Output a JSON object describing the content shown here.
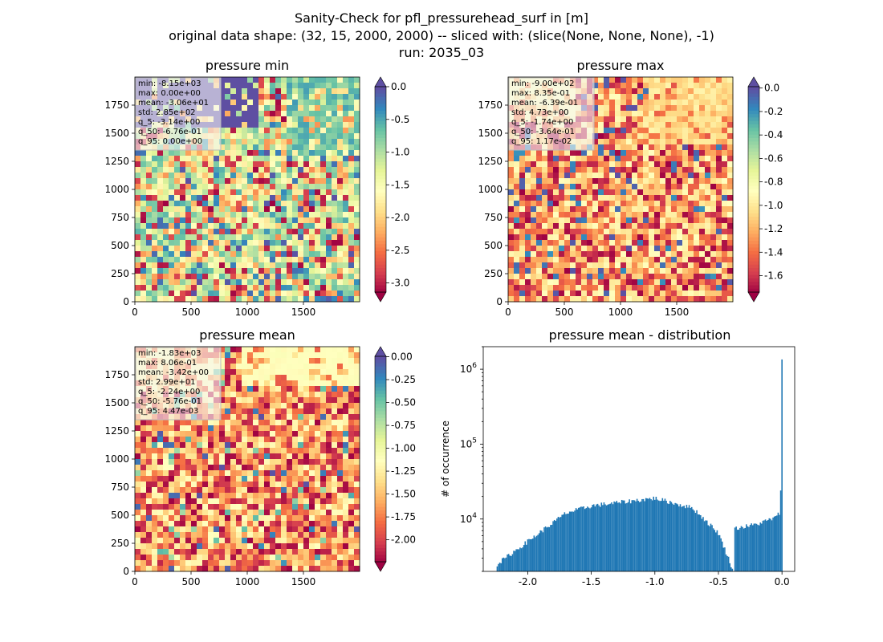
{
  "figure": {
    "title_lines": [
      "Sanity-Check for pfl_pressurehead_surf in [m]",
      "original data shape: (32, 15, 2000, 2000) -- sliced with: (slice(None, None, None), -1)",
      "run: 2035_03"
    ]
  },
  "chart_data": [
    {
      "type": "heatmap",
      "title": "pressure min",
      "x_ticks": [
        "0",
        "500",
        "1000",
        "1500"
      ],
      "y_ticks": [
        "0",
        "250",
        "500",
        "750",
        "1000",
        "1250",
        "1500",
        "1750"
      ],
      "xlim": [
        0,
        2000
      ],
      "ylim": [
        0,
        2000
      ],
      "colormap": "Spectral",
      "colorbar": {
        "ticks": [
          "0.0",
          "-0.5",
          "-1.0",
          "-1.5",
          "-2.0",
          "-2.5",
          "-3.0"
        ],
        "vmin": -3.14,
        "vmax": 0.0,
        "extend": "both"
      },
      "stats": [
        "min: -8.15e+03",
        "max: 0.00e+00",
        "mean: -3.06e+01",
        "std: 2.85e+02",
        "q_5: -3.14e+00",
        "q_50: -6.76e-01",
        "q_95: 0.00e+00"
      ]
    },
    {
      "type": "heatmap",
      "title": "pressure max",
      "x_ticks": [
        "0",
        "500",
        "1000",
        "1500"
      ],
      "y_ticks": [
        "0",
        "250",
        "500",
        "750",
        "1000",
        "1250",
        "1500",
        "1750"
      ],
      "xlim": [
        0,
        2000
      ],
      "ylim": [
        0,
        2000
      ],
      "colormap": "Spectral",
      "colorbar": {
        "ticks": [
          "0.0",
          "-0.2",
          "-0.4",
          "-0.6",
          "-0.8",
          "-1.0",
          "-1.2",
          "-1.4",
          "-1.6"
        ],
        "vmin": -1.74,
        "vmax": 0.0117,
        "extend": "both"
      },
      "stats": [
        "min: -9.00e+02",
        "max: 8.35e-01",
        "mean: -6.39e-01",
        "std: 4.73e+00",
        "q_5: -1.74e+00",
        "q_50: -3.64e-01",
        "q_95: 1.17e-02"
      ]
    },
    {
      "type": "heatmap",
      "title": "pressure mean",
      "x_ticks": [
        "0",
        "500",
        "1000",
        "1500"
      ],
      "y_ticks": [
        "0",
        "250",
        "500",
        "750",
        "1000",
        "1250",
        "1500",
        "1750"
      ],
      "xlim": [
        0,
        2000
      ],
      "ylim": [
        0,
        2000
      ],
      "colormap": "Spectral",
      "colorbar": {
        "ticks": [
          "0.00",
          "-0.25",
          "-0.50",
          "-0.75",
          "-1.00",
          "-1.25",
          "-1.50",
          "-1.75",
          "-2.00"
        ],
        "vmin": -2.24,
        "vmax": 0.00447,
        "extend": "both"
      },
      "stats": [
        "min: -1.83e+03",
        "max: 8.06e-01",
        "mean: -3.42e+00",
        "std: 2.99e+01",
        "q_5: -2.24e+00",
        "q_50: -5.76e-01",
        "q_95: 4.47e-03"
      ]
    },
    {
      "type": "bar",
      "title": "pressure mean - distribution",
      "ylabel": "# of occurrence",
      "xlabel": "",
      "yscale": "log",
      "xlim": [
        -2.35,
        0.1
      ],
      "ylim": [
        2000,
        2000000
      ],
      "x_ticks": [
        "-2.0",
        "-1.5",
        "-1.0",
        "-0.5",
        "0.0"
      ],
      "y_ticks": [
        "10^4",
        "10^5",
        "10^6"
      ],
      "color": "#1f77b4",
      "bin_width": 0.01,
      "x": [
        -2.24,
        -1.7,
        -1.5,
        -1.3,
        -1.0,
        -0.7,
        -0.5,
        -0.38,
        -0.37,
        -0.2,
        -0.05,
        -0.02,
        -0.01,
        0.0
      ],
      "values": [
        2500,
        12000,
        15000,
        16500,
        19000,
        14000,
        6500,
        2000,
        7500,
        8500,
        10500,
        12000,
        25000,
        1300000
      ]
    }
  ]
}
